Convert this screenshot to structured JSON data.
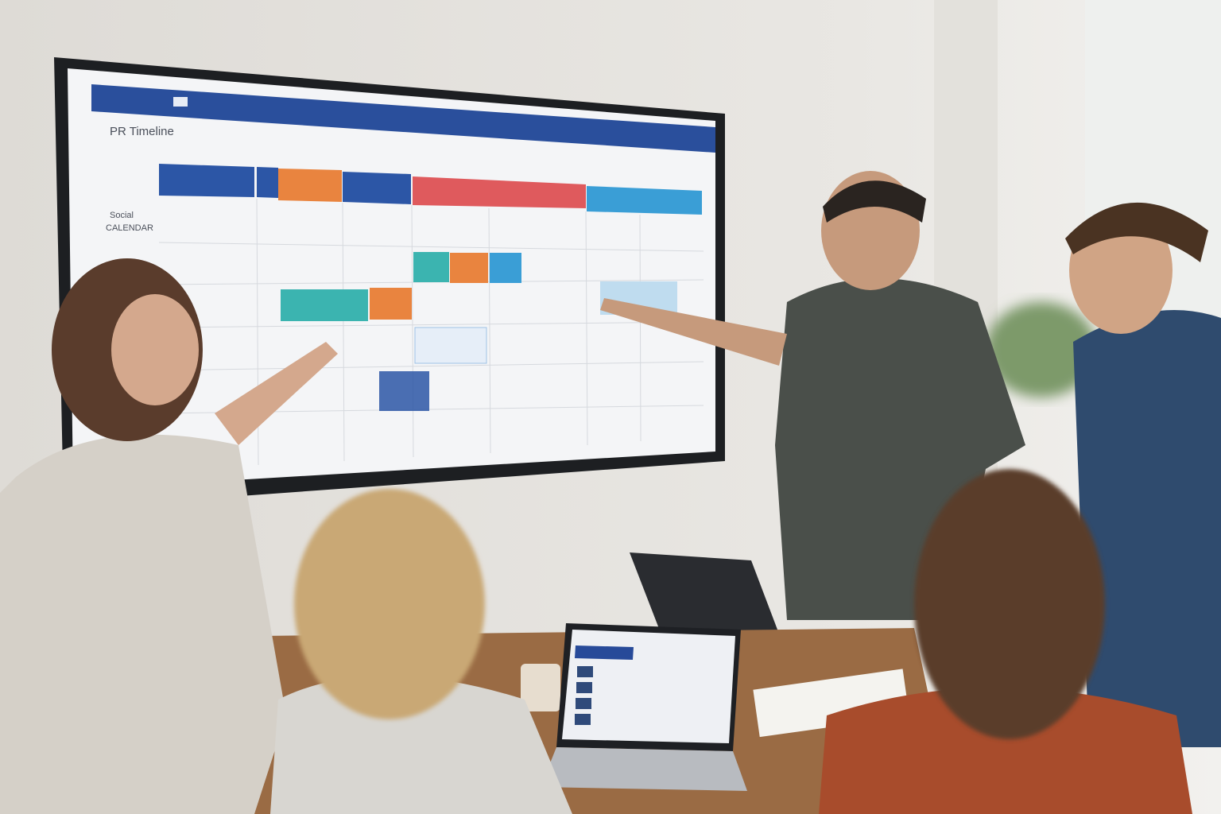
{
  "wall_display": {
    "app_title": "PR Timeline",
    "row_labels": [
      "Social",
      "CALENDAR"
    ],
    "colors": {
      "header": "#2a4f9c",
      "blue": "#2c56a6",
      "orange": "#e9843f",
      "red": "#df5a5d",
      "sky": "#3a9ed6",
      "teal": "#3bb4b0",
      "background": "#f4f5f7"
    }
  },
  "laptop_screen": {
    "colors": {
      "header": "#274a99",
      "tile": "#2f4a7a"
    }
  }
}
